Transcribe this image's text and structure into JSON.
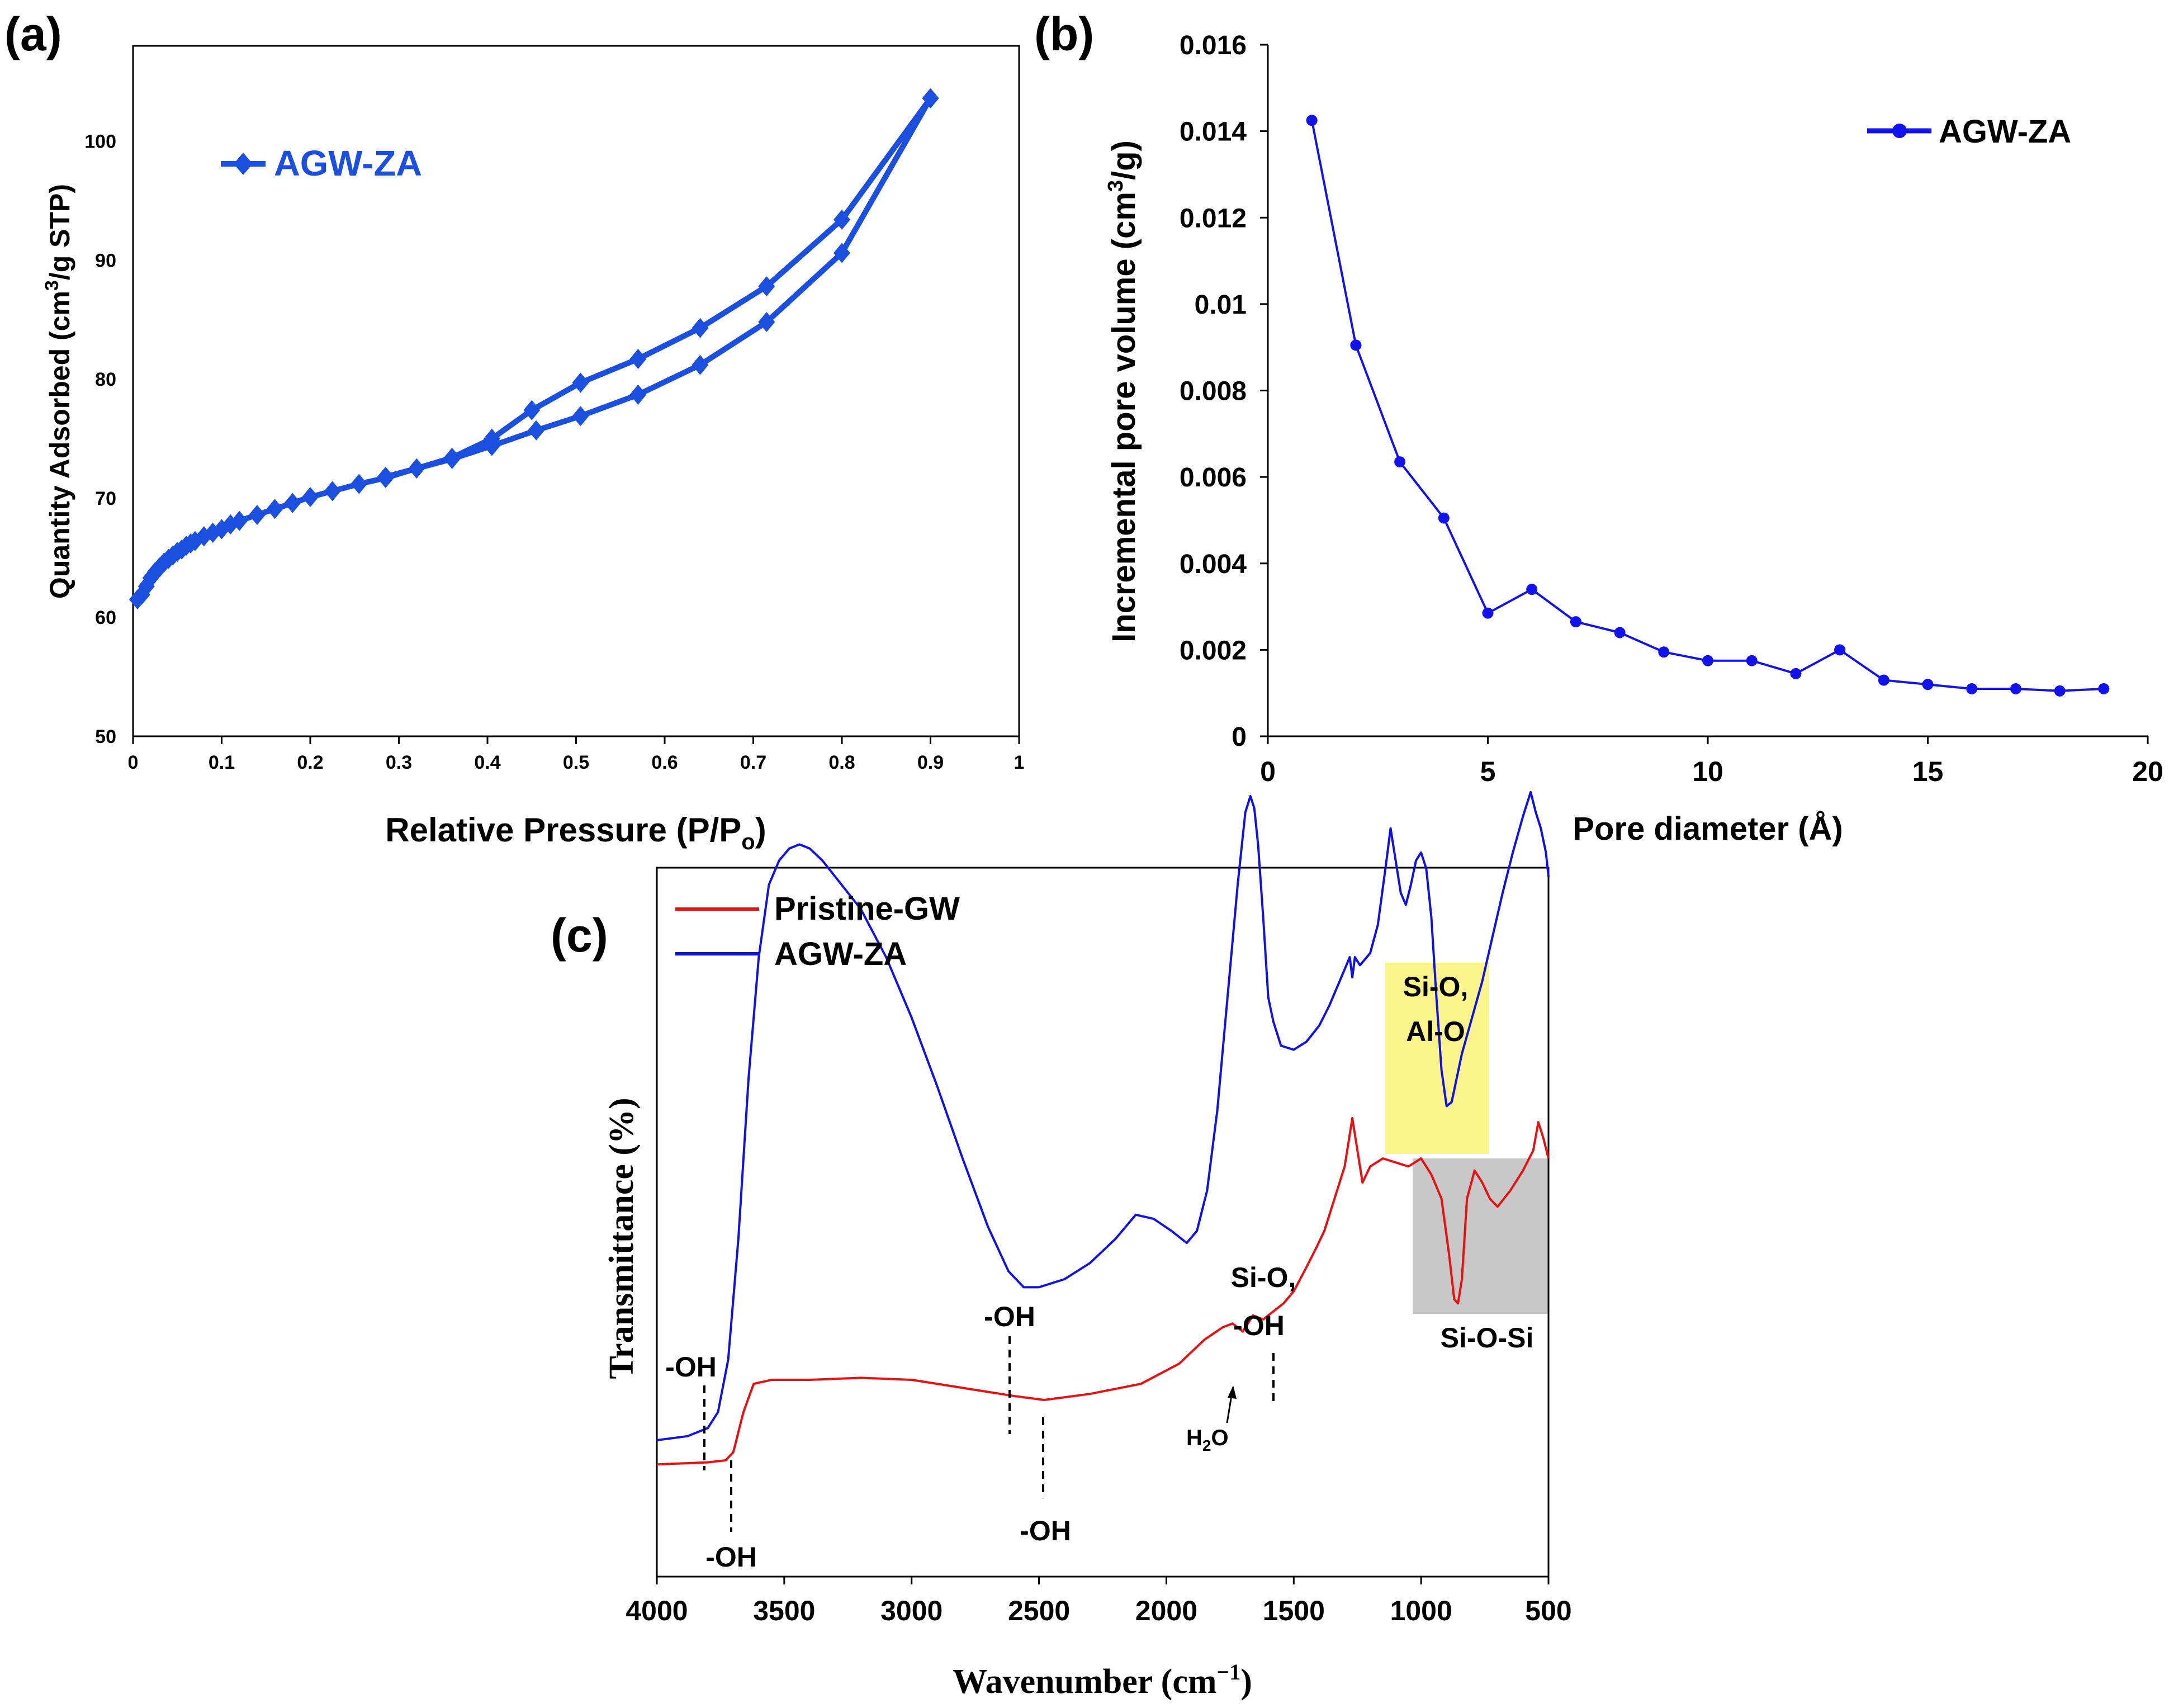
{
  "colors": {
    "agw_a": "#1a4fe0",
    "agw_b": "#1212ee",
    "agw_c": "#1010e8",
    "pristine": "#e81010",
    "yellow_box": "#fbf48a",
    "gray_box": "#c8c8c8",
    "axis": "#000000"
  },
  "chart_data": [
    {
      "id": "a",
      "panel_label": "(a)",
      "type": "line",
      "xlabel": "Relative Pressure (P/P",
      "xlabel_sub": "o",
      "xlabel_end": ")",
      "ylabel": "Quantity Adsorbed (cm",
      "ylabel_sup": "3",
      "ylabel_end": "/g STP)",
      "xlim": [
        0,
        1
      ],
      "ylim": [
        50,
        108
      ],
      "x_ticks": [
        "0",
        "0.1",
        "0.2",
        "0.3",
        "0.4",
        "0.5",
        "0.6",
        "0.7",
        "0.8",
        "0.9",
        "1"
      ],
      "y_ticks": [
        "50",
        "60",
        "70",
        "80",
        "90",
        "100"
      ],
      "legend": "top-left",
      "marker": "diamond",
      "series": [
        {
          "name": "AGW-ZA",
          "branch": "adsorption",
          "x": [
            0.005,
            0.01,
            0.015,
            0.02,
            0.025,
            0.03,
            0.035,
            0.04,
            0.045,
            0.05,
            0.055,
            0.06,
            0.065,
            0.07,
            0.08,
            0.09,
            0.1,
            0.11,
            0.12,
            0.14,
            0.16,
            0.18,
            0.2,
            0.225,
            0.255,
            0.285,
            0.32,
            0.36,
            0.405,
            0.455,
            0.505,
            0.57,
            0.64,
            0.715,
            0.8,
            0.9
          ],
          "y": [
            61.5,
            61.9,
            62.6,
            63.3,
            63.8,
            64.2,
            64.6,
            64.9,
            65.2,
            65.5,
            65.7,
            66.0,
            66.2,
            66.4,
            66.8,
            67.1,
            67.4,
            67.8,
            68.1,
            68.6,
            69.1,
            69.6,
            70.1,
            70.6,
            71.2,
            71.7,
            72.5,
            73.3,
            74.4,
            75.7,
            76.9,
            78.7,
            81.2,
            84.8,
            90.6,
            103.6
          ]
        },
        {
          "name": "AGW-ZA",
          "branch": "desorption",
          "x": [
            0.9,
            0.8,
            0.715,
            0.64,
            0.57,
            0.505,
            0.45,
            0.405,
            0.36,
            0.32,
            0.285
          ],
          "y": [
            103.6,
            93.4,
            87.8,
            84.3,
            81.7,
            79.7,
            77.4,
            75.0,
            73.4,
            72.5,
            71.8
          ]
        }
      ]
    },
    {
      "id": "b",
      "panel_label": "(b)",
      "type": "line",
      "xlabel": "Pore diameter (Å)",
      "ylabel": "Incremental pore volume (cm",
      "ylabel_sup": "3",
      "ylabel_end": "/g)",
      "xlim": [
        0,
        20
      ],
      "ylim": [
        0,
        0.016
      ],
      "x_ticks": [
        "0",
        "5",
        "10",
        "15",
        "20"
      ],
      "y_ticks": [
        "0",
        "0.002",
        "0.004",
        "0.006",
        "0.008",
        "0.01",
        "0.012",
        "0.014",
        "0.016"
      ],
      "legend": "top-right",
      "marker": "circle",
      "series": [
        {
          "name": "AGW-ZA",
          "x": [
            1,
            2,
            3,
            4,
            5,
            6,
            7,
            8,
            9,
            10,
            11,
            12,
            13,
            14,
            15,
            16,
            17,
            18,
            19
          ],
          "y": [
            0.01425,
            0.00905,
            0.00635,
            0.00505,
            0.00285,
            0.0034,
            0.00265,
            0.0024,
            0.00195,
            0.00175,
            0.00175,
            0.00145,
            0.002,
            0.0013,
            0.0012,
            0.0011,
            0.0011,
            0.00105,
            0.0011
          ]
        }
      ]
    },
    {
      "id": "c",
      "panel_label": "(c)",
      "type": "line",
      "xlabel": "Wavenumber (cm",
      "xlabel_sup": "−1",
      "xlabel_end": ")",
      "ylabel": "Transmittance (%)",
      "xlim": [
        4000,
        500
      ],
      "x_ticks": [
        "4000",
        "3500",
        "3000",
        "2500",
        "2000",
        "1500",
        "1000",
        "500"
      ],
      "legend": "top-left",
      "series": [
        {
          "name": "Pristine-GW",
          "x": [
            4000,
            3800,
            3730,
            3700,
            3660,
            3620,
            3550,
            3400,
            3200,
            3000,
            2800,
            2600,
            2480,
            2300,
            2100,
            1950,
            1850,
            1780,
            1740,
            1700,
            1660,
            1620,
            1580,
            1540,
            1500,
            1450,
            1410,
            1380,
            1340,
            1300,
            1270,
            1230,
            1200,
            1150,
            1100,
            1050,
            1000,
            960,
            920,
            890,
            870,
            855,
            840,
            820,
            790,
            760,
            730,
            700,
            650,
            600,
            560,
            540,
            520,
            500
          ],
          "y": [
            14,
            14.5,
            15,
            17,
            27,
            34,
            35,
            35,
            35.5,
            35,
            33,
            31,
            30,
            31.5,
            34,
            39,
            45,
            48,
            49,
            47,
            51,
            50,
            52,
            54,
            57,
            63,
            68,
            72,
            80,
            88,
            100,
            84,
            88,
            90,
            89,
            88,
            90,
            86,
            80,
            66,
            55,
            54,
            60,
            80,
            87,
            84,
            80,
            78,
            82,
            87,
            92,
            99,
            95,
            90
          ]
        },
        {
          "name": "AGW-ZA",
          "x": [
            4000,
            3880,
            3800,
            3760,
            3720,
            3680,
            3640,
            3600,
            3560,
            3520,
            3480,
            3440,
            3400,
            3350,
            3300,
            3200,
            3100,
            3000,
            2900,
            2800,
            2700,
            2620,
            2560,
            2500,
            2400,
            2300,
            2200,
            2120,
            2050,
            1980,
            1920,
            1880,
            1840,
            1800,
            1760,
            1720,
            1690,
            1670,
            1655,
            1640,
            1620,
            1600,
            1580,
            1550,
            1500,
            1450,
            1400,
            1360,
            1320,
            1280,
            1270,
            1260,
            1240,
            1200,
            1170,
            1140,
            1120,
            1100,
            1080,
            1060,
            1040,
            1020,
            1000,
            980,
            960,
            940,
            920,
            900,
            880,
            860,
            840,
            800,
            760,
            720,
            680,
            640,
            600,
            570,
            550,
            530,
            510,
            500
          ],
          "y": [
            20,
            21,
            23,
            27,
            40,
            70,
            110,
            140,
            158,
            164,
            167,
            168,
            167,
            164,
            160,
            152,
            140,
            125,
            108,
            90,
            73,
            62,
            58,
            58,
            60,
            64,
            70,
            76,
            75,
            72,
            69,
            72,
            82,
            102,
            130,
            158,
            176,
            180,
            177,
            168,
            150,
            130,
            124,
            118,
            117,
            119,
            123,
            128,
            134,
            140,
            135,
            140,
            138,
            141,
            148,
            162,
            172,
            164,
            156,
            153,
            158,
            164,
            166,
            162,
            150,
            130,
            112,
            103,
            104,
            110,
            116,
            125,
            134,
            145,
            156,
            166,
            175,
            181,
            176,
            172,
            166,
            160
          ]
        }
      ],
      "highlights": [
        {
          "label_line1": "Si-O,",
          "label_line2": "Al-O",
          "x_range": [
            1140,
            730
          ],
          "color": "#fbf48a"
        },
        {
          "label_line1": "Si-O-Si",
          "x_range": [
            1050,
            500
          ],
          "color": "#c8c8c8"
        }
      ],
      "annotations": {
        "oh_blue_left": "-OH",
        "oh_red_left": "-OH",
        "oh_blue_mid": "-OH",
        "oh_red_mid": "-OH",
        "sio_oh_line1": "Si-O,",
        "sio_oh_line2": "-OH",
        "h2o_main": "H",
        "h2o_sub": "2",
        "h2o_end": "O",
        "sioal_line1": "Si-O,",
        "sioal_line2": "Al-O",
        "siosi": "Si-O-Si"
      }
    }
  ]
}
